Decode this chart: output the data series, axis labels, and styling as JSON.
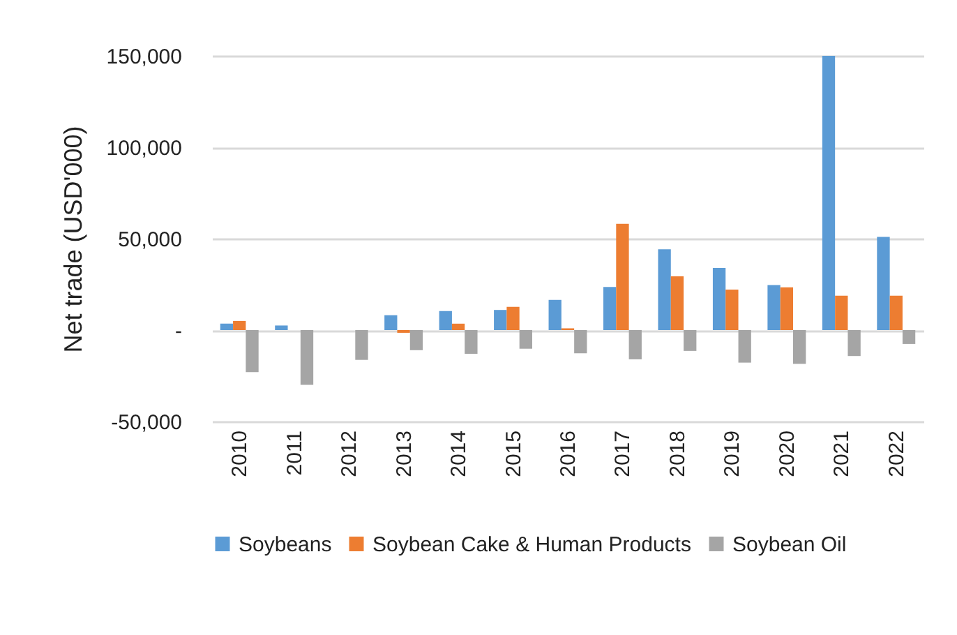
{
  "chart_data": {
    "type": "bar",
    "ylabel": "Net trade (USD'000)",
    "categories": [
      "2010",
      "2011",
      "2012",
      "2013",
      "2014",
      "2015",
      "2016",
      "2017",
      "2018",
      "2019",
      "2020",
      "2021",
      "2022"
    ],
    "series": [
      {
        "name": "Soybeans",
        "color": "#5b9bd5",
        "values": [
          3500,
          2500,
          null,
          8100,
          10400,
          11000,
          16500,
          23600,
          44200,
          34000,
          24600,
          150000,
          51000
        ]
      },
      {
        "name": "Soybean Cake & Human Products",
        "color": "#ed7d31",
        "values": [
          5000,
          null,
          null,
          -1500,
          3500,
          12700,
          1000,
          58100,
          29400,
          22100,
          23400,
          18800,
          18800
        ]
      },
      {
        "name": "Soybean Oil",
        "color": "#a5a5a5",
        "values": [
          -23000,
          -30000,
          -16300,
          -11000,
          -13000,
          -10200,
          -12700,
          -16000,
          -11400,
          -17800,
          -18500,
          -14200,
          -7600
        ]
      }
    ],
    "ylim": [
      -50000,
      150000
    ],
    "yticks": [
      {
        "value": -50000,
        "label": "-50,000"
      },
      {
        "value": 0,
        "label": "-"
      },
      {
        "value": 50000,
        "label": "50,000"
      },
      {
        "value": 100000,
        "label": "100,000"
      },
      {
        "value": 150000,
        "label": "150,000"
      }
    ],
    "grid": "y",
    "legend": "bottom"
  }
}
